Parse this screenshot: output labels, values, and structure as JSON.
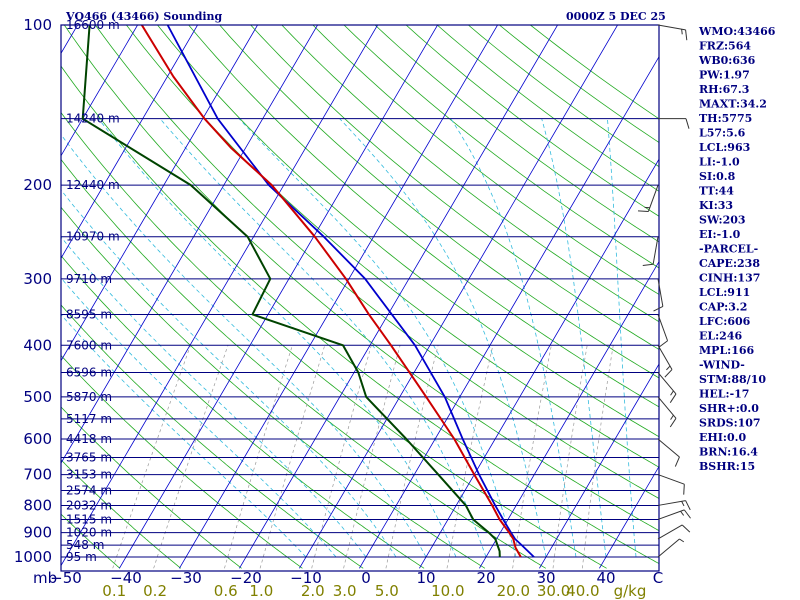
{
  "chart_data": {
    "type": "skew-t sounding",
    "title": "VQ466 (43466) Sounding",
    "valid_time": "0000Z  5 DEC 25",
    "units": {
      "pressure": "mb",
      "temperature": "C",
      "mixing_ratio": "g/kg"
    },
    "pressure_levels": [
      {
        "p": 100,
        "label": "100"
      },
      {
        "p": 200,
        "label": "200"
      },
      {
        "p": 300,
        "label": "300"
      },
      {
        "p": 400,
        "label": "400"
      },
      {
        "p": 500,
        "label": "500"
      },
      {
        "p": 600,
        "label": "600"
      },
      {
        "p": 700,
        "label": "700"
      },
      {
        "p": 800,
        "label": "800"
      },
      {
        "p": 900,
        "label": "900"
      },
      {
        "p": 1000,
        "label": "1000"
      }
    ],
    "height_labels": [
      {
        "p": 100,
        "label": "16600 m"
      },
      {
        "p": 150,
        "label": "14240 m"
      },
      {
        "p": 200,
        "label": "12440 m"
      },
      {
        "p": 250,
        "label": "10970 m"
      },
      {
        "p": 300,
        "label": "9710 m"
      },
      {
        "p": 350,
        "label": "8595 m"
      },
      {
        "p": 400,
        "label": "7600 m"
      },
      {
        "p": 450,
        "label": "6596 m"
      },
      {
        "p": 500,
        "label": "5870 m"
      },
      {
        "p": 550,
        "label": "5117 m"
      },
      {
        "p": 600,
        "label": "4418 m"
      },
      {
        "p": 650,
        "label": "3765 m"
      },
      {
        "p": 700,
        "label": "3153 m"
      },
      {
        "p": 750,
        "label": "2574 m"
      },
      {
        "p": 800,
        "label": "2032 m"
      },
      {
        "p": 850,
        "label": "1515 m"
      },
      {
        "p": 900,
        "label": "1020 m"
      },
      {
        "p": 950,
        "label": "548 m"
      },
      {
        "p": 1000,
        "label": "95 m"
      }
    ],
    "temperature_ticks": [
      {
        "t": -50,
        "label": "−50"
      },
      {
        "t": -40,
        "label": "−40"
      },
      {
        "t": -30,
        "label": "−30"
      },
      {
        "t": -20,
        "label": "−20"
      },
      {
        "t": -10,
        "label": "−10"
      },
      {
        "t": 0,
        "label": "0"
      },
      {
        "t": 10,
        "label": "10"
      },
      {
        "t": 20,
        "label": "20"
      },
      {
        "t": 30,
        "label": "30"
      },
      {
        "t": 40,
        "label": "40"
      }
    ],
    "axis_unit_left": "mb",
    "axis_unit_right": "C",
    "mixing_ratio_labels": [
      "0.1",
      "0.2",
      "0.6",
      "1.0",
      "2.0",
      "3.0",
      "5.0",
      "10.0",
      "20.0",
      "30.0",
      "40.0"
    ],
    "mixing_ratio_unit": "g/kg",
    "temperature_profile": [
      {
        "p": 1000,
        "t": 25.8
      },
      {
        "p": 960,
        "t": 24.0
      },
      {
        "p": 925,
        "t": 22.8
      },
      {
        "p": 900,
        "t": 21.5
      },
      {
        "p": 850,
        "t": 18.6
      },
      {
        "p": 800,
        "t": 16.0
      },
      {
        "p": 700,
        "t": 10.0
      },
      {
        "p": 600,
        "t": 3.2
      },
      {
        "p": 500,
        "t": -5.6
      },
      {
        "p": 400,
        "t": -16.5
      },
      {
        "p": 350,
        "t": -23.2
      },
      {
        "p": 300,
        "t": -30.5
      },
      {
        "p": 250,
        "t": -39.8
      },
      {
        "p": 200,
        "t": -52.0
      },
      {
        "p": 170,
        "t": -62.5
      },
      {
        "p": 150,
        "t": -69.7
      },
      {
        "p": 125,
        "t": -79.0
      },
      {
        "p": 100,
        "t": -89.3
      }
    ],
    "dewpoint_profile": [
      {
        "p": 1000,
        "t": 22.3
      },
      {
        "p": 975,
        "t": 21.7
      },
      {
        "p": 925,
        "t": 19.8
      },
      {
        "p": 900,
        "t": 18.1
      },
      {
        "p": 850,
        "t": 14.2
      },
      {
        "p": 800,
        "t": 11.6
      },
      {
        "p": 700,
        "t": 4.0
      },
      {
        "p": 600,
        "t": -4.8
      },
      {
        "p": 500,
        "t": -15.6
      },
      {
        "p": 450,
        "t": -19.3
      },
      {
        "p": 400,
        "t": -24.5
      },
      {
        "p": 350,
        "t": -42.6
      },
      {
        "p": 300,
        "t": -43.1
      },
      {
        "p": 250,
        "t": -51.0
      },
      {
        "p": 200,
        "t": -65.5
      },
      {
        "p": 150,
        "t": -90.0
      },
      {
        "p": 100,
        "t": -98.0
      }
    ],
    "parcel_path": [
      {
        "p": 1000,
        "t": 28.0
      },
      {
        "p": 950,
        "t": 24.8
      },
      {
        "p": 925,
        "t": 23.1
      },
      {
        "p": 900,
        "t": 21.8
      },
      {
        "p": 850,
        "t": 19.2
      },
      {
        "p": 800,
        "t": 16.5
      },
      {
        "p": 700,
        "t": 10.8
      },
      {
        "p": 600,
        "t": 4.6
      },
      {
        "p": 500,
        "t": -2.5
      },
      {
        "p": 400,
        "t": -12.5
      },
      {
        "p": 300,
        "t": -27.3
      },
      {
        "p": 250,
        "t": -38.3
      },
      {
        "p": 200,
        "t": -52.5
      },
      {
        "p": 150,
        "t": -67.5
      },
      {
        "p": 100,
        "t": -85.0
      }
    ],
    "wind_barbs": [
      {
        "p": 1000,
        "dir": 50,
        "spd": 5
      },
      {
        "p": 925,
        "dir": 60,
        "spd": 10
      },
      {
        "p": 850,
        "dir": 70,
        "spd": 15
      },
      {
        "p": 800,
        "dir": 80,
        "spd": 15
      },
      {
        "p": 700,
        "dir": 110,
        "spd": 10
      },
      {
        "p": 600,
        "dir": 130,
        "spd": 10
      },
      {
        "p": 500,
        "dir": 140,
        "spd": 15
      },
      {
        "p": 450,
        "dir": 140,
        "spd": 15
      },
      {
        "p": 400,
        "dir": 150,
        "spd": 15
      },
      {
        "p": 350,
        "dir": 160,
        "spd": 10
      },
      {
        "p": 300,
        "dir": 170,
        "spd": 10
      },
      {
        "p": 250,
        "dir": 190,
        "spd": 10
      },
      {
        "p": 200,
        "dir": 200,
        "spd": 15
      },
      {
        "p": 150,
        "dir": 90,
        "spd": 10
      },
      {
        "p": 100,
        "dir": 100,
        "spd": 15
      }
    ],
    "indices": [
      "WMO:43466",
      "FRZ:564",
      "WB0:636",
      "PW:1.97",
      "RH:67.3",
      "MAXT:34.2",
      "TH:5775",
      "L57:5.6",
      "LCL:963",
      "LI:-1.0",
      "SI:0.8",
      "TT:44",
      "KI:33",
      "SW:203",
      "EI:-1.0",
      "-PARCEL-",
      "CAPE:238",
      "CINH:137",
      "LCL:911",
      "CAP:3.2",
      "LFC:606",
      "EL:246",
      "MPL:166",
      "-WIND-",
      "STM:88/10",
      "HEL:-17",
      "SHR+:0.0",
      "SRDS:107",
      "EHI:0.0",
      "BRN:16.4",
      "BSHR:15"
    ],
    "colors": {
      "frame": "#000080",
      "isobar": "#000080",
      "isotherm": "#0000cd",
      "dry_adiabat": "#22aa22",
      "moist_adiabat": "#33bbdd",
      "mixing_ratio": "#999999",
      "temperature": "#cc0000",
      "dewpoint": "#004400",
      "parcel": "#0000cc",
      "wind_barb": "#333333"
    }
  }
}
